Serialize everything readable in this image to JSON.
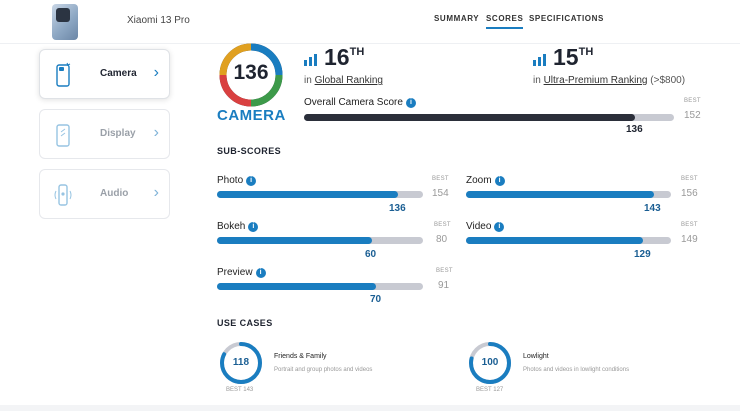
{
  "header": {
    "phone_name": "Xiaomi 13 Pro",
    "nav": [
      {
        "label": "SUMMARY",
        "active": false
      },
      {
        "label": "SCORES",
        "active": true
      },
      {
        "label": "SPECIFICATIONS",
        "active": false
      }
    ]
  },
  "sidebar": {
    "items": [
      {
        "label": "Camera",
        "icon": "camera-phone-icon",
        "active": true
      },
      {
        "label": "Display",
        "icon": "display-phone-icon",
        "active": false
      },
      {
        "label": "Audio",
        "icon": "audio-phone-icon",
        "active": false
      }
    ]
  },
  "main": {
    "score": "136",
    "category": "CAMERA",
    "global_rank": {
      "number": "16",
      "suffix": "TH",
      "prefix": "in",
      "label": "Global Ranking"
    },
    "segment_rank": {
      "number": "15",
      "suffix": "TH",
      "prefix": "in",
      "label": "Ultra-Premium Ranking",
      "extra": "(>$800)"
    },
    "overall": {
      "label": "Overall Camera Score",
      "score": "136",
      "best_label": "BEST",
      "best": "152",
      "fraction": 0.895
    }
  },
  "subscores": {
    "heading": "SUB-SCORES",
    "items": [
      {
        "label": "Photo",
        "score": "136",
        "best_label": "BEST",
        "best": "154",
        "fraction": 0.88
      },
      {
        "label": "Zoom",
        "score": "143",
        "best_label": "BEST",
        "best": "156",
        "fraction": 0.915
      },
      {
        "label": "Bokeh",
        "score": "60",
        "best_label": "BEST",
        "best": "80",
        "fraction": 0.75
      },
      {
        "label": "Video",
        "score": "129",
        "best_label": "BEST",
        "best": "149",
        "fraction": 0.865
      },
      {
        "label": "Preview",
        "score": "70",
        "best_label": "BEST",
        "best": "91",
        "fraction": 0.77
      }
    ]
  },
  "use_cases": {
    "heading": "USE CASES",
    "items": [
      {
        "score": "118",
        "title": "Friends & Family",
        "desc": "Portrait and group photos and videos",
        "best": "BEST 143",
        "fraction": 0.825
      },
      {
        "score": "100",
        "title": "Lowlight",
        "desc": "Photos and videos in lowlight conditions",
        "best": "BEST 127",
        "fraction": 0.787
      }
    ]
  },
  "colors": {
    "accent": "#1a7dc0",
    "dark": "#2b2f3a",
    "track": "#c8cad2"
  }
}
